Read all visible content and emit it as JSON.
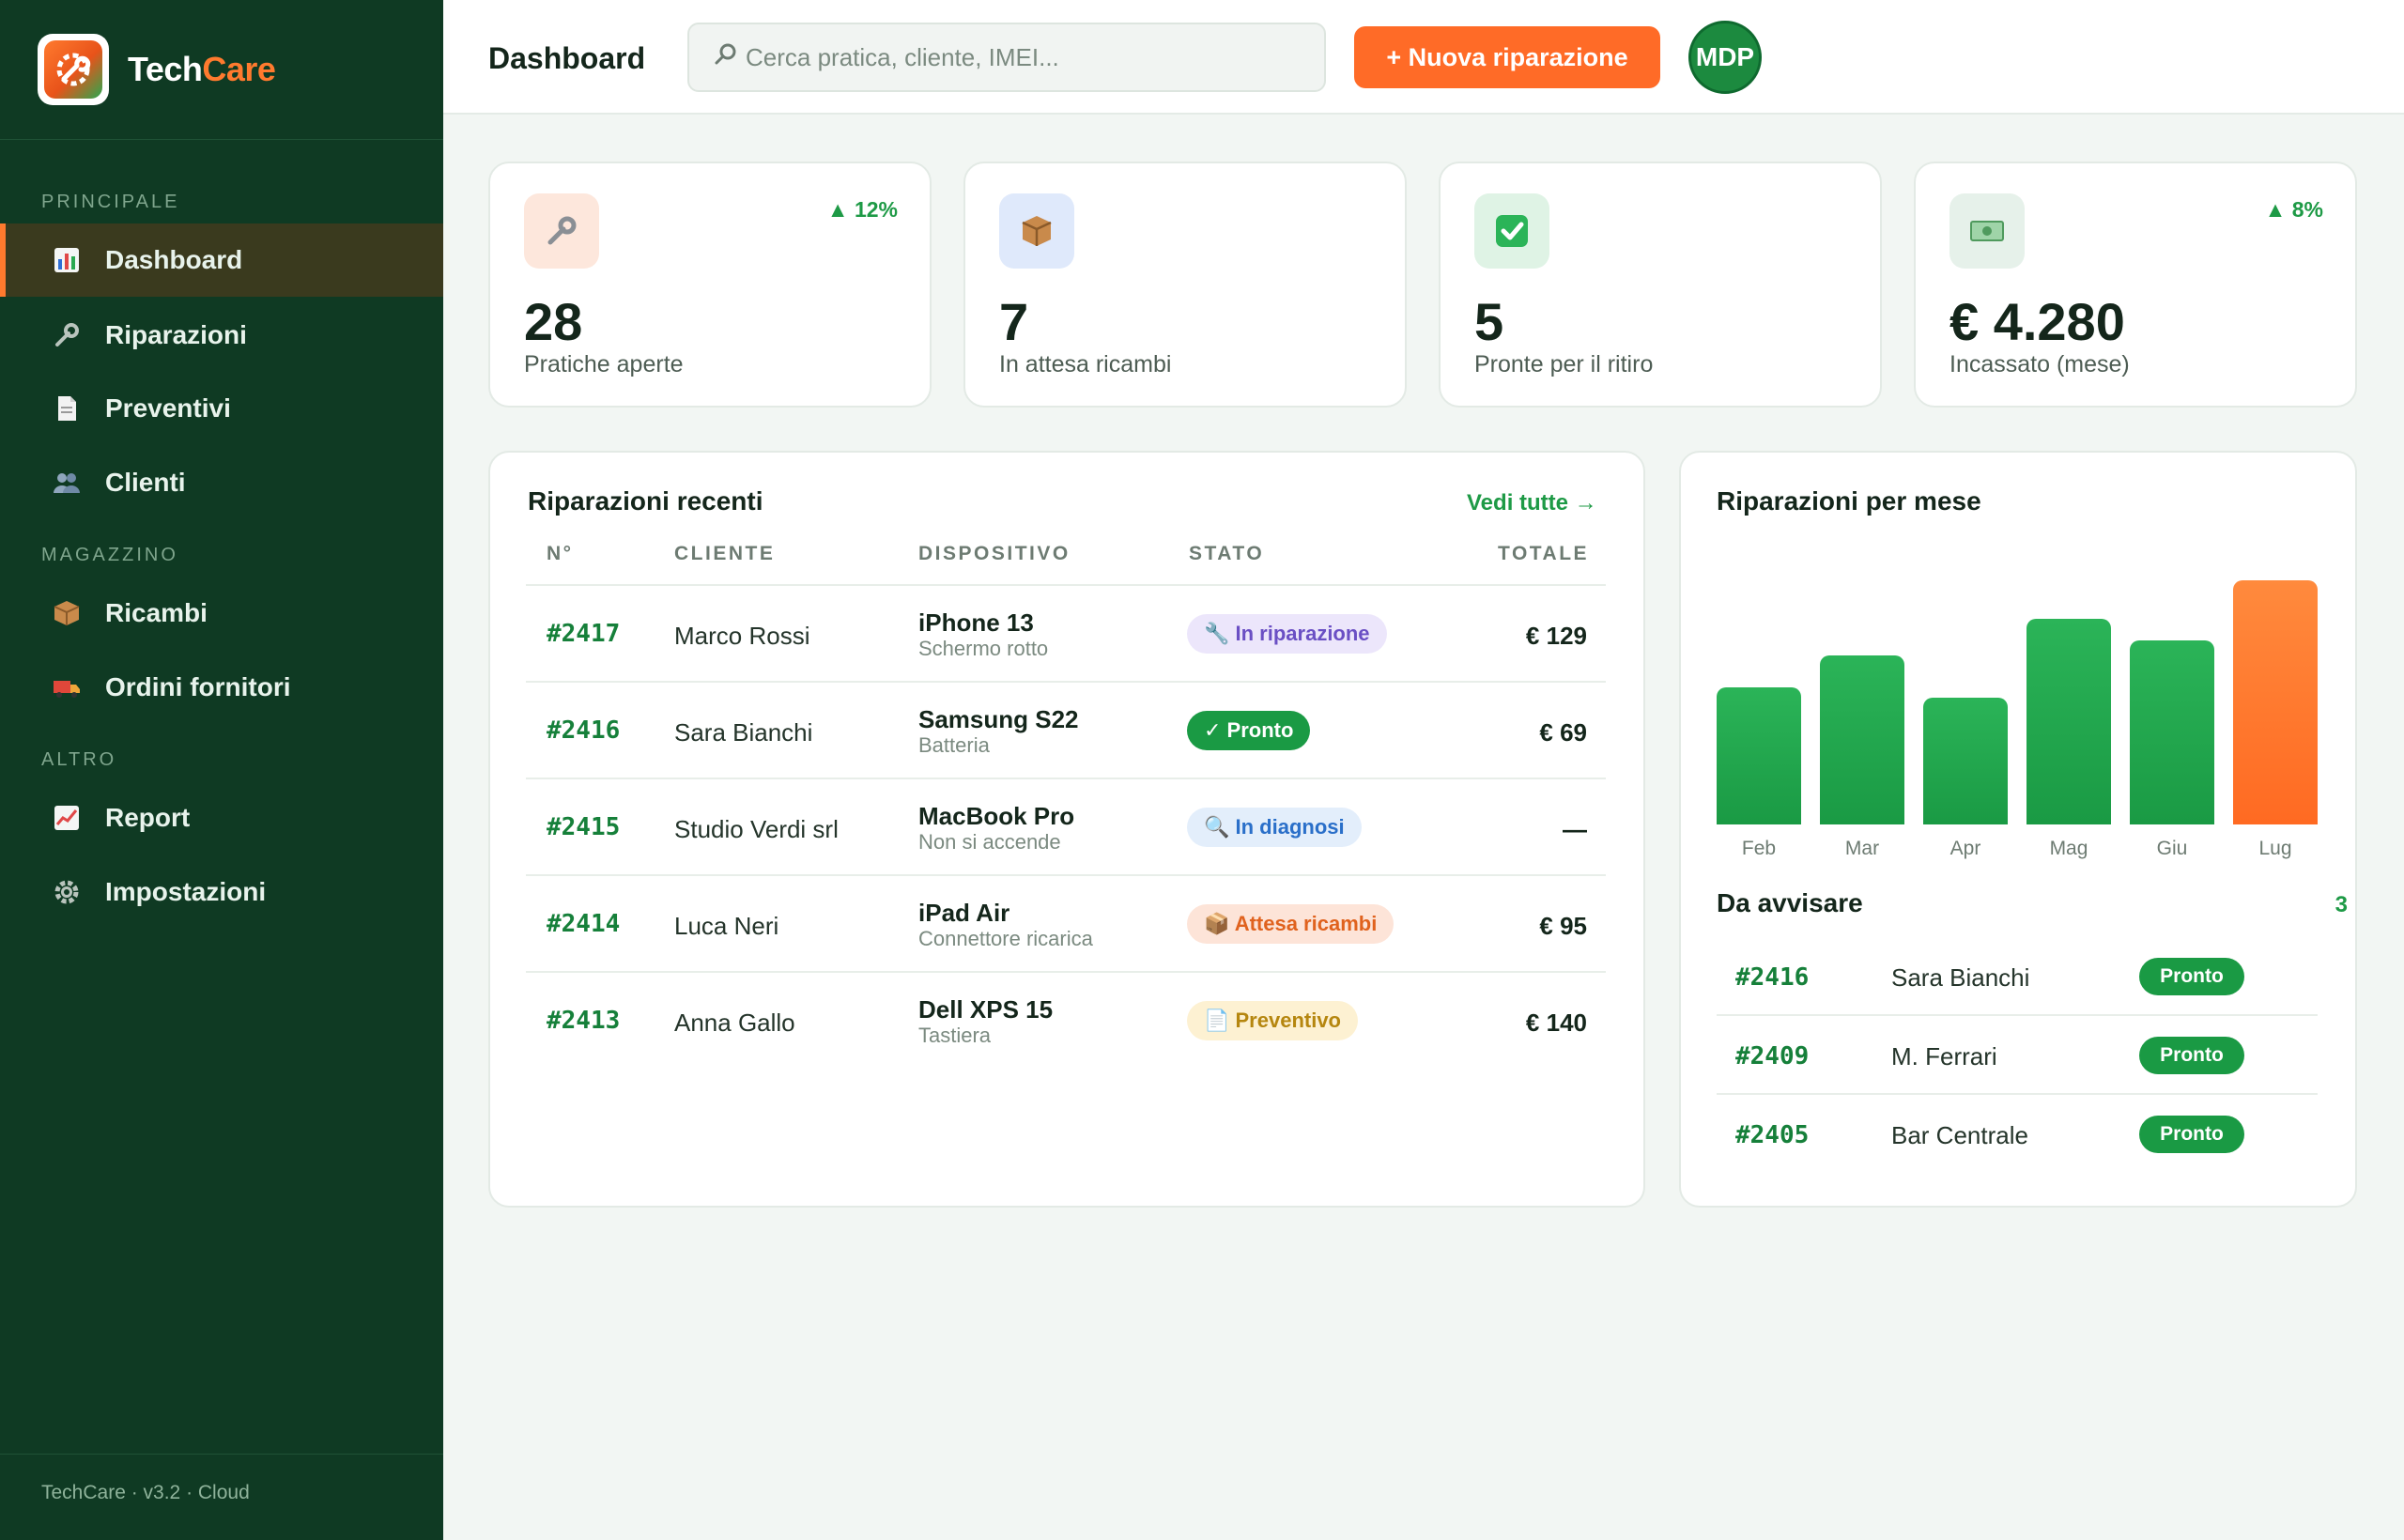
{
  "app": {
    "brand_part1": "Tech",
    "brand_part2": "Care",
    "footer": "TechCare · v3.2 · Cloud"
  },
  "sidebar": {
    "sections": [
      "PRINCIPALE",
      "MAGAZZINO",
      "ALTRO"
    ],
    "items": [
      {
        "label": "Dashboard",
        "icon": "bar-chart-icon",
        "active": true
      },
      {
        "label": "Riparazioni",
        "icon": "wrench-icon"
      },
      {
        "label": "Preventivi",
        "icon": "document-icon"
      },
      {
        "label": "Clienti",
        "icon": "people-icon"
      },
      {
        "label": "Ricambi",
        "icon": "package-icon"
      },
      {
        "label": "Ordini fornitori",
        "icon": "truck-icon"
      },
      {
        "label": "Report",
        "icon": "line-chart-icon"
      },
      {
        "label": "Impostazioni",
        "icon": "gear-icon"
      }
    ]
  },
  "topbar": {
    "title": "Dashboard",
    "search_placeholder": "Cerca pratica, cliente, IMEI...",
    "new_button": "+ Nuova riparazione",
    "avatar_initials": "MDP"
  },
  "stats": [
    {
      "icon": "wrench-icon",
      "value": "28",
      "label": "Pratiche aperte",
      "trend": "▲ 12%"
    },
    {
      "icon": "package-icon",
      "value": "7",
      "label": "In attesa ricambi",
      "trend": ""
    },
    {
      "icon": "check-icon",
      "value": "5",
      "label": "Pronte per il ritiro",
      "trend": ""
    },
    {
      "icon": "money-icon",
      "value": "€ 4.280",
      "label": "Incassato (mese)",
      "trend": "▲ 8%"
    }
  ],
  "recent": {
    "title": "Riparazioni recenti",
    "see_all": "Vedi tutte →",
    "columns": [
      "N°",
      "CLIENTE",
      "DISPOSITIVO",
      "STATO",
      "TOTALE"
    ],
    "rows": [
      {
        "num": "#2417",
        "client": "Marco Rossi",
        "device": "iPhone 13",
        "issue": "Schermo rotto",
        "status": "🔧 In riparazione",
        "total": "€ 129"
      },
      {
        "num": "#2416",
        "client": "Sara Bianchi",
        "device": "Samsung S22",
        "issue": "Batteria",
        "status": "✓ Pronto",
        "total": "€ 69"
      },
      {
        "num": "#2415",
        "client": "Studio Verdi srl",
        "device": "MacBook Pro",
        "issue": "Non si accende",
        "status": "🔍 In diagnosi",
        "total": "—"
      },
      {
        "num": "#2414",
        "client": "Luca Neri",
        "device": "iPad Air",
        "issue": "Connettore ricarica",
        "status": "📦 Attesa ricambi",
        "total": "€ 95"
      },
      {
        "num": "#2413",
        "client": "Anna Gallo",
        "device": "Dell XPS 15",
        "issue": "Tastiera",
        "status": "📄 Preventivo",
        "total": "€ 140"
      }
    ],
    "status_colors": {
      "repair": "#6a4fc4",
      "ready": "#1a9a44",
      "diagnosis": "#2a6fc9",
      "parts": "#e0621e",
      "quote": "#b5860f"
    }
  },
  "chart_data": {
    "type": "bar",
    "title": "Riparazioni per mese",
    "categories": [
      "Feb",
      "Mar",
      "Apr",
      "Mag",
      "Giu",
      "Lug"
    ],
    "values": [
      64,
      79,
      59,
      96,
      86,
      114
    ],
    "highlight": "Lug",
    "colors": {
      "bar": "#1e9a46",
      "highlight": "#ff6b27"
    },
    "grid": false
  },
  "notify": {
    "title": "Da avvisare",
    "count": "3",
    "rows": [
      {
        "num": "#2416",
        "name": "Sara Bianchi",
        "status": "Pronto"
      },
      {
        "num": "#2409",
        "name": "M. Ferrari",
        "status": "Pronto"
      },
      {
        "num": "#2405",
        "name": "Bar Centrale",
        "status": "Pronto"
      }
    ]
  },
  "colors": {
    "sidebar_bg": "#0f3a23",
    "accent": "#ff6b27",
    "brand_green": "#1e9a46",
    "page_bg": "#f2f6f3"
  }
}
